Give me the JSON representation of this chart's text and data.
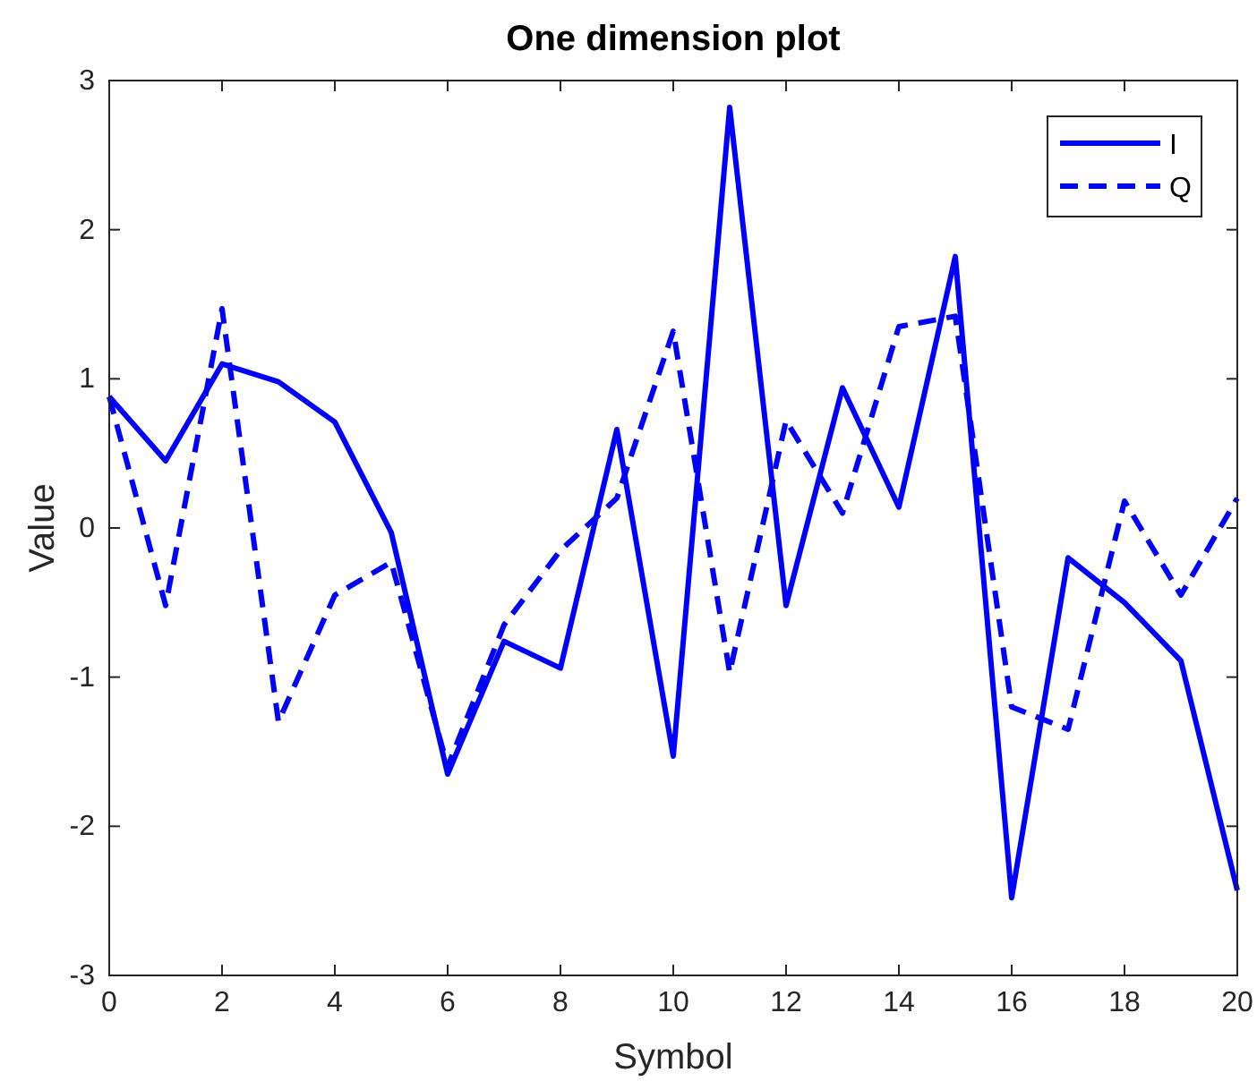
{
  "chart_data": {
    "type": "line",
    "title": "One dimension plot",
    "xlabel": "Symbol",
    "ylabel": "Value",
    "x": [
      0,
      1,
      2,
      3,
      4,
      5,
      6,
      7,
      8,
      9,
      10,
      11,
      12,
      13,
      14,
      15,
      16,
      17,
      18,
      19,
      20
    ],
    "series": [
      {
        "name": "I",
        "color": "#0000ff",
        "line_style": "solid",
        "values": [
          0.88,
          0.45,
          1.1,
          0.98,
          0.71,
          -0.03,
          -1.65,
          -0.76,
          -0.94,
          0.66,
          -1.53,
          2.82,
          -0.52,
          0.94,
          0.14,
          1.82,
          -2.48,
          -0.2,
          -0.5,
          -0.89,
          -2.43
        ]
      },
      {
        "name": "Q",
        "color": "#0000ff",
        "line_style": "dashed",
        "values": [
          0.88,
          -0.52,
          1.47,
          -1.3,
          -0.45,
          -0.23,
          -1.6,
          -0.65,
          -0.15,
          0.2,
          1.32,
          -0.97,
          0.72,
          0.1,
          1.35,
          1.42,
          -1.2,
          -1.35,
          0.18,
          -0.45,
          0.2
        ]
      }
    ],
    "xlim": [
      0,
      20
    ],
    "xticks": [
      0,
      2,
      4,
      6,
      8,
      10,
      12,
      14,
      16,
      18,
      20
    ],
    "ylim": [
      -3,
      3
    ],
    "yticks": [
      -3,
      -2,
      -1,
      0,
      1,
      2,
      3
    ],
    "grid": false,
    "legend": "top right",
    "marker": "none"
  }
}
